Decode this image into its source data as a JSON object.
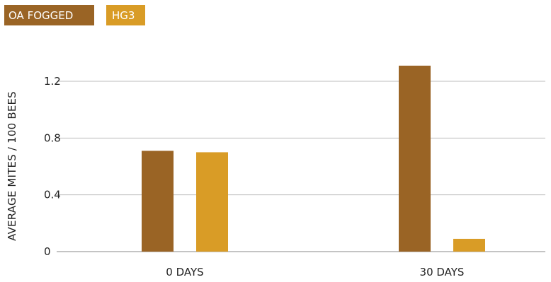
{
  "chart_data": {
    "type": "bar",
    "title": "",
    "xlabel": "",
    "ylabel": "AVERAGE MITES / 100 BEES",
    "categories": [
      "0 DAYS",
      "30 DAYS"
    ],
    "series": [
      {
        "name": "OA FOGGED",
        "color": "#9A6425",
        "values": [
          0.71,
          1.31
        ]
      },
      {
        "name": "HG3",
        "color": "#D99C26",
        "values": [
          0.7,
          0.09
        ]
      }
    ],
    "ylim": [
      0,
      1.2
    ],
    "yticks": [
      "0",
      "0.4",
      "0.8",
      "1.2"
    ],
    "grid": true,
    "legend": "top-left"
  }
}
